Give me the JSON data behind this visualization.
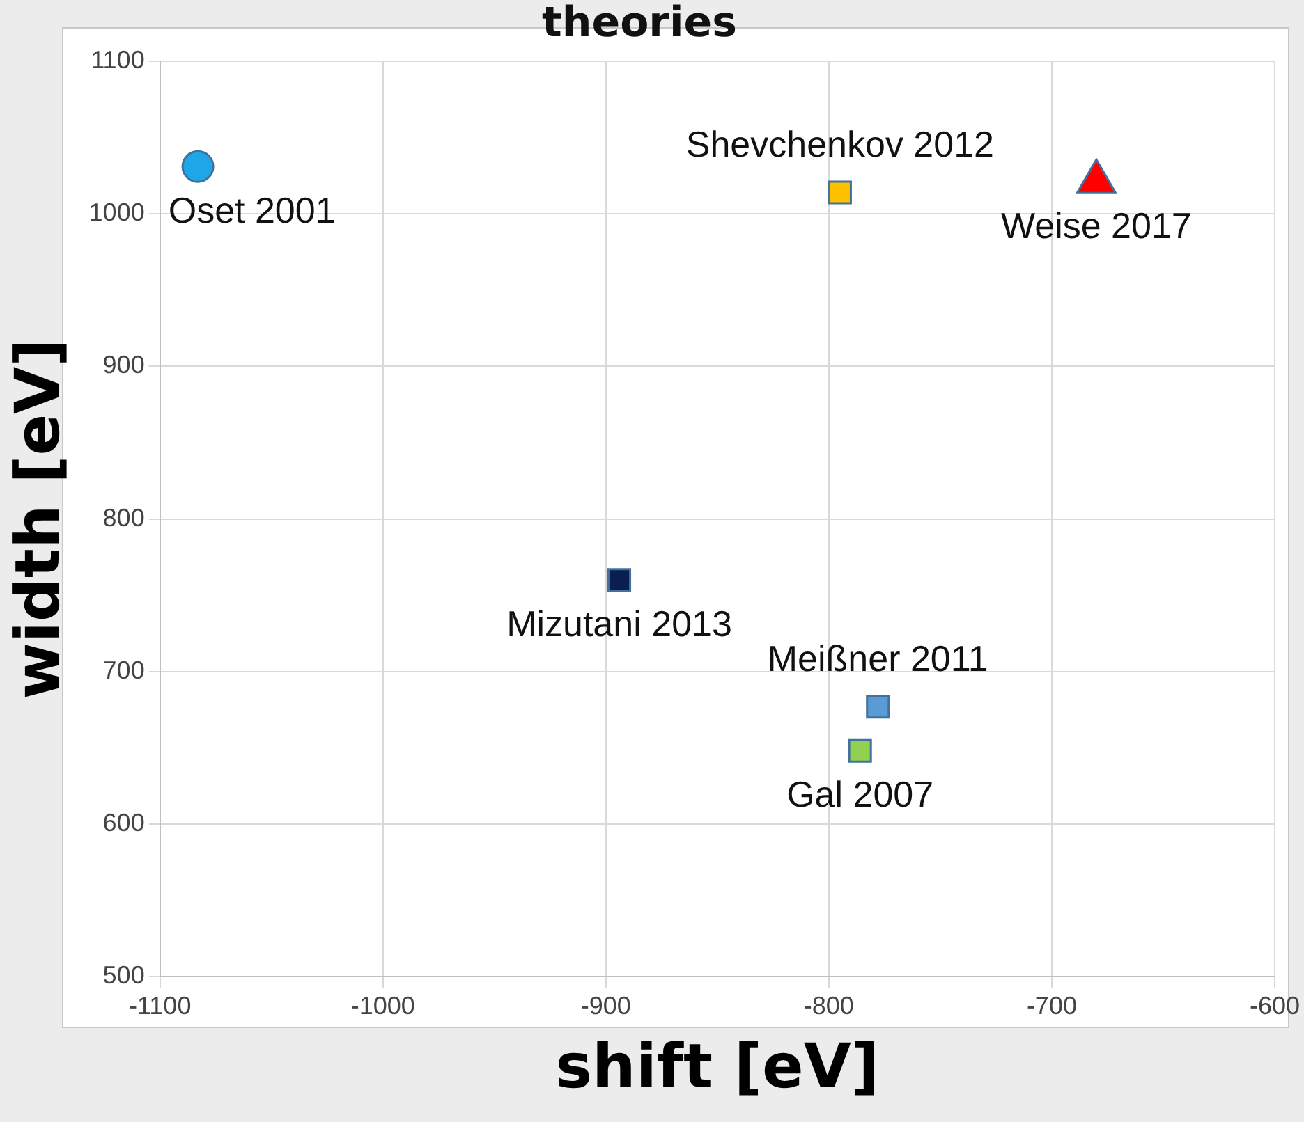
{
  "chart_data": {
    "type": "scatter",
    "title": "theories",
    "xlabel": "shift [eV]",
    "ylabel": "width [eV]",
    "xlim": [
      -1100,
      -600
    ],
    "xticks": [
      -1100,
      -1000,
      -900,
      -800,
      -700,
      -600
    ],
    "ylim": [
      500,
      1100
    ],
    "yticks": [
      500,
      600,
      700,
      800,
      900,
      1000,
      1100
    ],
    "grid": true,
    "legend": false,
    "series": [
      {
        "name": "Oset 2001",
        "color": "#1ea7e8",
        "marker": "circle",
        "x": [
          -1083
        ],
        "values": [
          1031
        ]
      },
      {
        "name": "Shevchenkov 2012",
        "color": "#ffc000",
        "marker": "square",
        "x": [
          -795
        ],
        "values": [
          1014
        ]
      },
      {
        "name": "Weise 2017",
        "color": "#ff0000",
        "marker": "triangle",
        "x": [
          -680
        ],
        "values": [
          1021
        ]
      },
      {
        "name": "Mizutani 2013",
        "color": "#0a1f4f",
        "marker": "square",
        "x": [
          -894
        ],
        "values": [
          760
        ]
      },
      {
        "name": "Meißner 2011",
        "color": "#5b9bd5",
        "marker": "square",
        "x": [
          -778
        ],
        "values": [
          677
        ]
      },
      {
        "name": "Gal 2007",
        "color": "#92d050",
        "marker": "square",
        "x": [
          -786
        ],
        "values": [
          648
        ]
      }
    ]
  }
}
